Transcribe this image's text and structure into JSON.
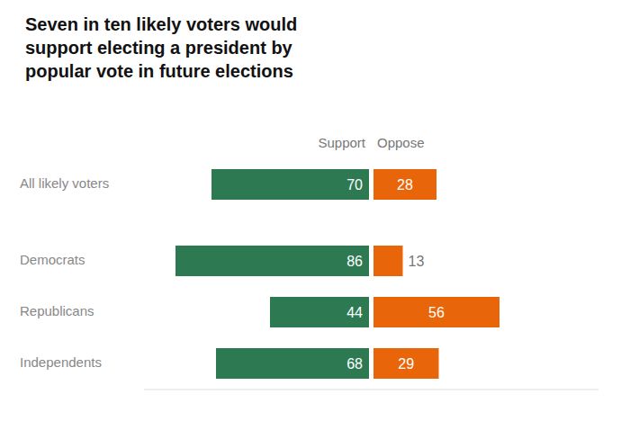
{
  "chart_data": {
    "type": "bar",
    "orientation": "horizontal",
    "title": "Seven in ten likely voters would\nsupport electing a president by\npopular vote in future elections",
    "categories": [
      "All likely voters",
      "Democrats",
      "Republicans",
      "Independents"
    ],
    "series": [
      {
        "name": "Support",
        "color": "#2d7a52",
        "values": [
          70,
          86,
          44,
          68
        ]
      },
      {
        "name": "Oppose",
        "color": "#e8650a",
        "values": [
          28,
          13,
          56,
          29
        ]
      }
    ],
    "xlim": [
      0,
      100
    ],
    "data_labels": true,
    "tick_labels": "y"
  }
}
